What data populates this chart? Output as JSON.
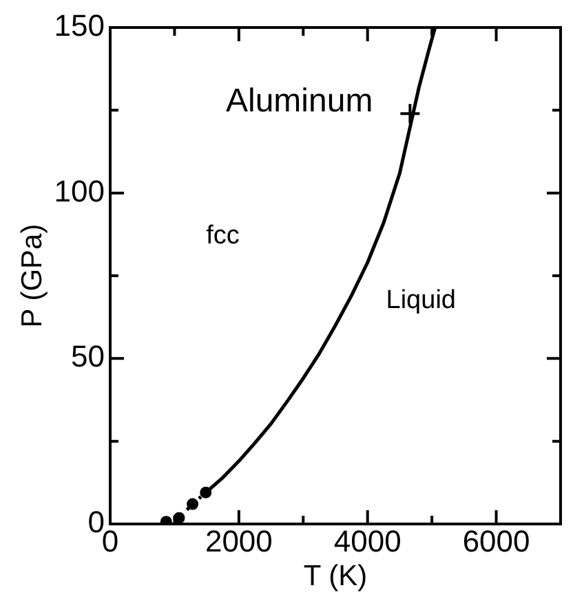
{
  "chart_data": {
    "type": "line",
    "xlabel": "T (K)",
    "ylabel": "P (GPa)",
    "xlim": [
      0,
      7000
    ],
    "xticks": [
      0,
      {
        "value": 1000,
        "label": null
      },
      2000,
      {
        "value": 3000,
        "label": null
      },
      4000,
      {
        "value": 5000,
        "label": null
      },
      6000
    ],
    "ylim": [
      0,
      150
    ],
    "yticks": [
      0,
      {
        "value": 25,
        "label": null
      },
      50,
      {
        "value": 75,
        "label": null
      },
      100,
      {
        "value": 125,
        "label": null
      },
      150
    ],
    "grid": false,
    "legend": false,
    "annotations": [
      "Aluminum",
      "fcc",
      "Liquid"
    ],
    "series": [
      {
        "color": "#000000",
        "line_style": "dotted",
        "marker": "circle",
        "x": [
          870,
          1070,
          1280,
          1485
        ],
        "values": [
          0.7,
          1.8,
          6,
          9.5
        ]
      },
      {
        "color": "#000000",
        "line_style": "solid",
        "marker": "none",
        "x": [
          1485,
          1750,
          2000,
          2250,
          2500,
          2750,
          3000,
          3250,
          3500,
          3750,
          4000,
          4250,
          4500,
          4650,
          4800,
          4950,
          5050
        ],
        "values": [
          9.5,
          14,
          19,
          24.5,
          30.3,
          37,
          44,
          51.5,
          60,
          69,
          79,
          91,
          106,
          119,
          132,
          143,
          150
        ]
      },
      {
        "type": "scatter",
        "color": "#000000",
        "marker": "cross",
        "x": [
          4660
        ],
        "values": [
          124
        ]
      }
    ]
  }
}
